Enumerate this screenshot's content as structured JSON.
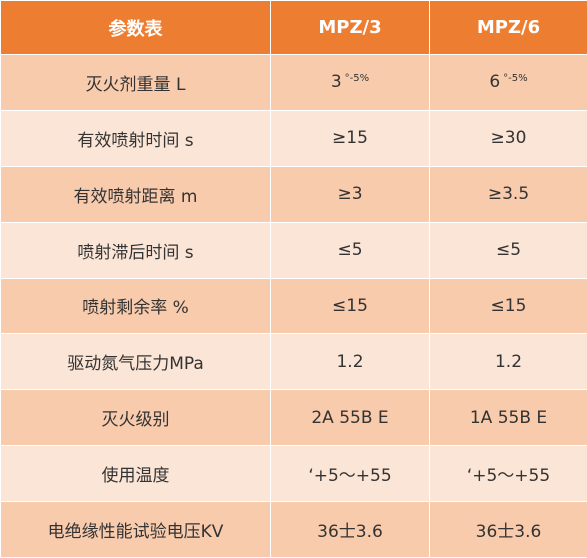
{
  "colors": {
    "header_bg": "#ed7d31",
    "row_dark": "#f8cbad",
    "row_light": "#fbe5d6",
    "header_text": "#ffffff",
    "body_text": "#333333"
  },
  "header": {
    "param": "参数表",
    "model1": "MPZ/3",
    "model2": "MPZ/6"
  },
  "rows": [
    {
      "label": "灭火剂重量 L",
      "v1": "3",
      "v1_tol": "°-5%",
      "v2": "6",
      "v2_tol": "°-5%"
    },
    {
      "label": "有效喷射时间 s",
      "v1": "≥15",
      "v2": "≥30"
    },
    {
      "label": "有效喷射距离 m",
      "v1": "≥3",
      "v2": "≥3.5"
    },
    {
      "label": "喷射滞后时间 s",
      "v1": "≤5",
      "v2": "≤5"
    },
    {
      "label": "喷射剩余率 %",
      "v1": "≤15",
      "v2": "≤15"
    },
    {
      "label": "驱动氮气压力MPa",
      "v1": "1.2",
      "v2": "1.2"
    },
    {
      "label": "灭火级别",
      "v1": "2A 55B E",
      "v2": "1A 55B E"
    },
    {
      "label": "使用温度",
      "v1": "‘+5～+55",
      "v2": "‘+5～+55"
    },
    {
      "label": "电绝缘性能试验电压KV",
      "v1": "36士3.6",
      "v2": "36士3.6"
    }
  ]
}
